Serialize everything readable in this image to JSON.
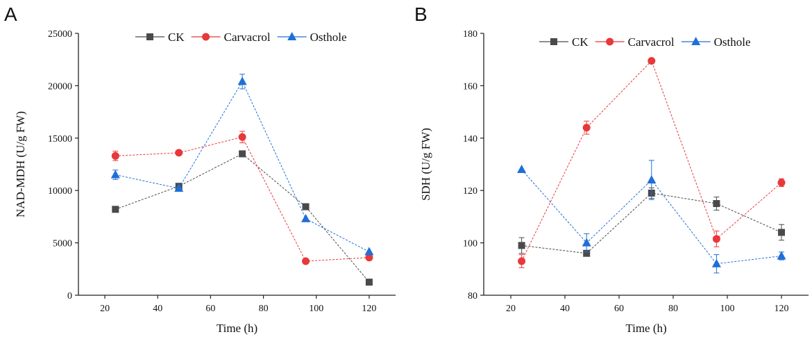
{
  "series_colors": {
    "CK": "#4a4a4a",
    "Carvacrol": "#e8383b",
    "Osthole": "#1f6fd6"
  },
  "chart_data": [
    {
      "type": "line",
      "panel_label": "A",
      "xlabel": "Time (h)",
      "ylabel": "NAD-MDH (U/g FW)",
      "xlim": [
        10,
        130
      ],
      "ylim": [
        0,
        25000
      ],
      "xticks": [
        20,
        40,
        60,
        80,
        100,
        120
      ],
      "yticks": [
        0,
        5000,
        10000,
        15000,
        20000,
        25000
      ],
      "xtick_labels": [
        "20",
        "40",
        "60",
        "80",
        "100",
        "120"
      ],
      "ytick_labels": [
        "0",
        "5000",
        "10000",
        "15000",
        "20000",
        "25000"
      ],
      "legend": [
        "CK",
        "Carvacrol",
        "Osthole"
      ],
      "x": [
        24,
        48,
        72,
        96,
        120
      ],
      "series": [
        {
          "name": "CK",
          "marker": "square",
          "values": [
            8200,
            10400,
            13500,
            8450,
            1250
          ],
          "errors": [
            0,
            0,
            0,
            0,
            0
          ]
        },
        {
          "name": "Carvacrol",
          "marker": "circle",
          "values": [
            13300,
            13600,
            15100,
            3250,
            3600
          ],
          "errors": [
            450,
            0,
            550,
            0,
            0
          ]
        },
        {
          "name": "Osthole",
          "marker": "triangle",
          "values": [
            11500,
            10200,
            20400,
            7300,
            4150
          ],
          "errors": [
            450,
            0,
            700,
            0,
            0
          ]
        }
      ]
    },
    {
      "type": "line",
      "panel_label": "B",
      "xlabel": "Time (h)",
      "ylabel": "SDH (U/g FW)",
      "xlim": [
        10,
        130
      ],
      "ylim": [
        80,
        180
      ],
      "xticks": [
        20,
        40,
        60,
        80,
        100,
        120
      ],
      "yticks": [
        80,
        100,
        120,
        140,
        160,
        180
      ],
      "xtick_labels": [
        "20",
        "40",
        "60",
        "80",
        "100",
        "120"
      ],
      "ytick_labels": [
        "80",
        "100",
        "120",
        "140",
        "160",
        "180"
      ],
      "legend": [
        "CK",
        "Carvacrol",
        "Osthole"
      ],
      "x": [
        24,
        48,
        72,
        96,
        120
      ],
      "series": [
        {
          "name": "CK",
          "marker": "square",
          "values": [
            99,
            96,
            119,
            115,
            104
          ],
          "errors": [
            3,
            0,
            2,
            2.5,
            3
          ]
        },
        {
          "name": "Carvacrol",
          "marker": "circle",
          "values": [
            93,
            144,
            169.5,
            101.5,
            123
          ],
          "errors": [
            2.5,
            2.5,
            0,
            3,
            1.5
          ]
        },
        {
          "name": "Osthole",
          "marker": "triangle",
          "values": [
            128,
            100,
            124,
            92,
            95
          ],
          "errors": [
            0,
            3.5,
            7.5,
            3.5,
            1.5
          ]
        }
      ]
    }
  ]
}
